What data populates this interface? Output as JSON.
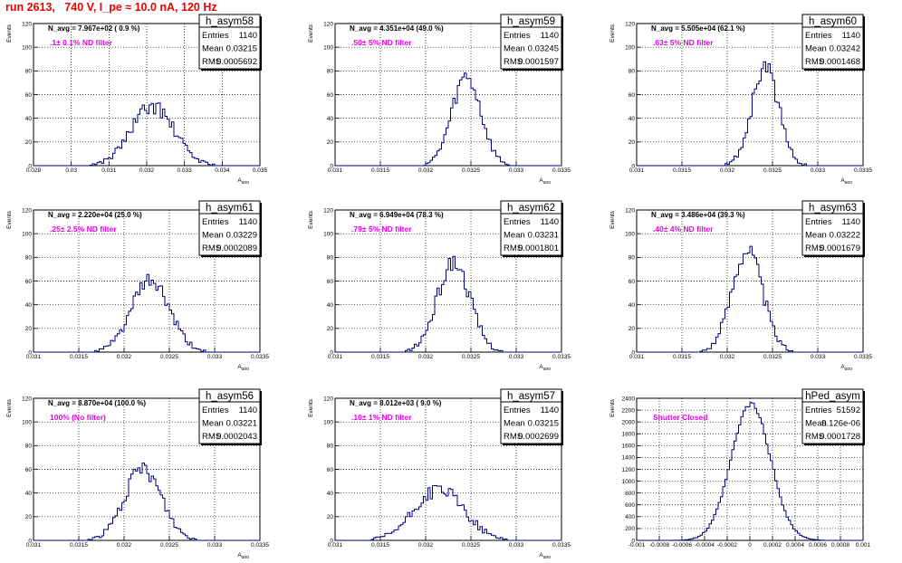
{
  "page": {
    "title": "run 2613,   740 V, I_pe ≈ 10.0 nA, 120 Hz"
  },
  "labels": {
    "events": "Events",
    "x_axis": "A_uoo",
    "stat_entries": "Entries",
    "stat_mean": "Mean",
    "stat_rms": "RMS"
  },
  "colors": {
    "histogram": "#00007f",
    "annotation": "#e600e6",
    "title": "#ee0000",
    "grid": "#000000"
  },
  "chart_data": [
    {
      "type": "histogram",
      "hist_name": "h_asym58",
      "navg": "N_avg = 7.967e+02 ( 0.9 %)",
      "filter": ".1± 0.1% ND filter",
      "stats": {
        "entries": "1140",
        "mean": "0.03215",
        "rms": "0.0005692"
      },
      "xlim": [
        0.029,
        0.035
      ],
      "xticks": [
        "0.029",
        "0.03",
        "0.031",
        "0.032",
        "0.033",
        "0.034",
        "0.035"
      ],
      "xticks_v": [
        0.029,
        0.03,
        0.031,
        0.032,
        0.033,
        0.034,
        0.035
      ],
      "ylim": [
        0,
        120
      ],
      "yticks": [
        "0",
        "20",
        "40",
        "60",
        "80",
        "100",
        "120"
      ],
      "grid": true,
      "xlabel": "A_uoo",
      "ylabel": "Events",
      "center": 0.03215,
      "sigma": 0.00057,
      "peak": 50,
      "nbins": 100,
      "seed": 58
    },
    {
      "type": "histogram",
      "hist_name": "h_asym59",
      "navg": "N_avg = 4.351e+04 (49.0 %)",
      "filter": ".50± 5% ND filter",
      "stats": {
        "entries": "1140",
        "mean": "0.03245",
        "rms": "0.0001597"
      },
      "xlim": [
        0.031,
        0.0335
      ],
      "xticks": [
        "0.031",
        "0.0315",
        "0.032",
        "0.0325",
        "0.033",
        "0.0335"
      ],
      "xticks_v": [
        0.031,
        0.0315,
        0.032,
        0.0325,
        0.033,
        0.0335
      ],
      "ylim": [
        0,
        120
      ],
      "yticks": [
        "0",
        "20",
        "40",
        "60",
        "80",
        "100",
        "120"
      ],
      "grid": true,
      "xlabel": "A_uoo",
      "ylabel": "Events",
      "center": 0.03245,
      "sigma": 0.00016,
      "peak": 75,
      "nbins": 100,
      "seed": 59
    },
    {
      "type": "histogram",
      "hist_name": "h_asym60",
      "navg": "N_avg = 5.505e+04 (62.1 %)",
      "filter": ".63± 5% ND filter",
      "stats": {
        "entries": "1140",
        "mean": "0.03242",
        "rms": "0.0001468"
      },
      "xlim": [
        0.031,
        0.0335
      ],
      "xticks": [
        "0.031",
        "0.0315",
        "0.032",
        "0.0325",
        "0.033",
        "0.0335"
      ],
      "xticks_v": [
        0.031,
        0.0315,
        0.032,
        0.0325,
        0.033,
        0.0335
      ],
      "ylim": [
        0,
        120
      ],
      "yticks": [
        "0",
        "20",
        "40",
        "60",
        "80",
        "100",
        "120"
      ],
      "grid": true,
      "xlabel": "A_uoo",
      "ylabel": "Events",
      "center": 0.03242,
      "sigma": 0.000147,
      "peak": 83,
      "nbins": 100,
      "seed": 60
    },
    {
      "type": "histogram",
      "hist_name": "h_asym61",
      "navg": "N_avg = 2.220e+04 (25.0 %)",
      "filter": ".25± 2.5% ND filter",
      "stats": {
        "entries": "1140",
        "mean": "0.03229",
        "rms": "0.0002089"
      },
      "xlim": [
        0.031,
        0.0335
      ],
      "xticks": [
        "0.031",
        "0.0315",
        "0.032",
        "0.0325",
        "0.033",
        "0.0335"
      ],
      "xticks_v": [
        0.031,
        0.0315,
        0.032,
        0.0325,
        0.033,
        0.0335
      ],
      "ylim": [
        0,
        120
      ],
      "yticks": [
        "0",
        "20",
        "40",
        "60",
        "80",
        "100",
        "120"
      ],
      "grid": true,
      "xlabel": "A_uoo",
      "ylabel": "Events",
      "center": 0.03229,
      "sigma": 0.00021,
      "peak": 60,
      "nbins": 100,
      "seed": 61
    },
    {
      "type": "histogram",
      "hist_name": "h_asym62",
      "navg": "N_avg = 6.949e+04 (78.3 %)",
      "filter": ".79± 5% ND filter",
      "stats": {
        "entries": "1140",
        "mean": "0.03231",
        "rms": "0.0001801"
      },
      "xlim": [
        0.031,
        0.0335
      ],
      "xticks": [
        "0.031",
        "0.0315",
        "0.032",
        "0.0325",
        "0.033",
        "0.0335"
      ],
      "xticks_v": [
        0.031,
        0.0315,
        0.032,
        0.0325,
        0.033,
        0.0335
      ],
      "ylim": [
        0,
        120
      ],
      "yticks": [
        "0",
        "20",
        "40",
        "60",
        "80",
        "100",
        "120"
      ],
      "grid": true,
      "xlabel": "A_uoo",
      "ylabel": "Events",
      "center": 0.03231,
      "sigma": 0.00018,
      "peak": 76,
      "nbins": 100,
      "seed": 62
    },
    {
      "type": "histogram",
      "hist_name": "h_asym63",
      "navg": "N_avg = 3.486e+04 (39.3 %)",
      "filter": ".40± 4% ND filter",
      "stats": {
        "entries": "1140",
        "mean": "0.03222",
        "rms": "0.0001679"
      },
      "xlim": [
        0.031,
        0.0335
      ],
      "xticks": [
        "0.031",
        "0.0315",
        "0.032",
        "0.0325",
        "0.033",
        "0.0335"
      ],
      "xticks_v": [
        0.031,
        0.0315,
        0.032,
        0.0325,
        0.033,
        0.0335
      ],
      "ylim": [
        0,
        120
      ],
      "yticks": [
        "0",
        "20",
        "40",
        "60",
        "80",
        "100",
        "120"
      ],
      "grid": true,
      "xlabel": "A_uoo",
      "ylabel": "Events",
      "center": 0.03222,
      "sigma": 0.000168,
      "peak": 87,
      "nbins": 100,
      "seed": 63
    },
    {
      "type": "histogram",
      "hist_name": "h_asym56",
      "navg": "N_avg = 8.870e+04 (100.0 %)",
      "filter": "100% (No filter)",
      "stats": {
        "entries": "1140",
        "mean": "0.03221",
        "rms": "0.0002043"
      },
      "xlim": [
        0.031,
        0.0335
      ],
      "xticks": [
        "0.031",
        "0.0315",
        "0.032",
        "0.0325",
        "0.033",
        "0.0335"
      ],
      "xticks_v": [
        0.031,
        0.0315,
        0.032,
        0.0325,
        0.033,
        0.0335
      ],
      "ylim": [
        0,
        120
      ],
      "yticks": [
        "0",
        "20",
        "40",
        "60",
        "80",
        "100",
        "120"
      ],
      "grid": true,
      "xlabel": "A_uoo",
      "ylabel": "Events",
      "center": 0.03221,
      "sigma": 0.000204,
      "peak": 60,
      "nbins": 100,
      "seed": 56
    },
    {
      "type": "histogram",
      "hist_name": "h_asym57",
      "navg": "N_avg = 8.012e+03 ( 9.0 %)",
      "filter": ".10± 1% ND filter",
      "stats": {
        "entries": "1140",
        "mean": "0.03215",
        "rms": "0.0002699"
      },
      "xlim": [
        0.031,
        0.0335
      ],
      "xticks": [
        "0.031",
        "0.0315",
        "0.032",
        "0.0325",
        "0.033",
        "0.0335"
      ],
      "xticks_v": [
        0.031,
        0.0315,
        0.032,
        0.0325,
        0.033,
        0.0335
      ],
      "ylim": [
        0,
        120
      ],
      "yticks": [
        "0",
        "20",
        "40",
        "60",
        "80",
        "100",
        "120"
      ],
      "grid": true,
      "xlabel": "A_uoo",
      "ylabel": "Events",
      "center": 0.03215,
      "sigma": 0.00027,
      "peak": 43,
      "nbins": 100,
      "seed": 57
    },
    {
      "type": "histogram",
      "hist_name": "hPed_asym",
      "navg": "",
      "filter": "Shutter Closed",
      "stats": {
        "entries": "51592",
        "mean": "9.126e-06",
        "rms": "0.0001728"
      },
      "xlim": [
        -0.001,
        0.001
      ],
      "xticks": [
        "-0.001",
        "-0.0008",
        "-0.0006",
        "-0.0004",
        "-0.0002",
        "0",
        "0.0002",
        "0.0004",
        "0.0006",
        "0.0008",
        "0.001"
      ],
      "xticks_v": [
        -0.001,
        -0.0008,
        -0.0006,
        -0.0004,
        -0.0002,
        0,
        0.0002,
        0.0004,
        0.0006,
        0.0008,
        0.001
      ],
      "ylim": [
        0,
        2400
      ],
      "yticks": [
        "0",
        "200",
        "400",
        "600",
        "800",
        "1000",
        "1200",
        "1400",
        "1600",
        "1800",
        "2000",
        "2200",
        "2400"
      ],
      "grid": true,
      "xlabel": "",
      "ylabel": "Events",
      "center": 9.1e-06,
      "sigma": 0.000173,
      "peak": 2300,
      "nbins": 100,
      "seed": 99
    }
  ]
}
